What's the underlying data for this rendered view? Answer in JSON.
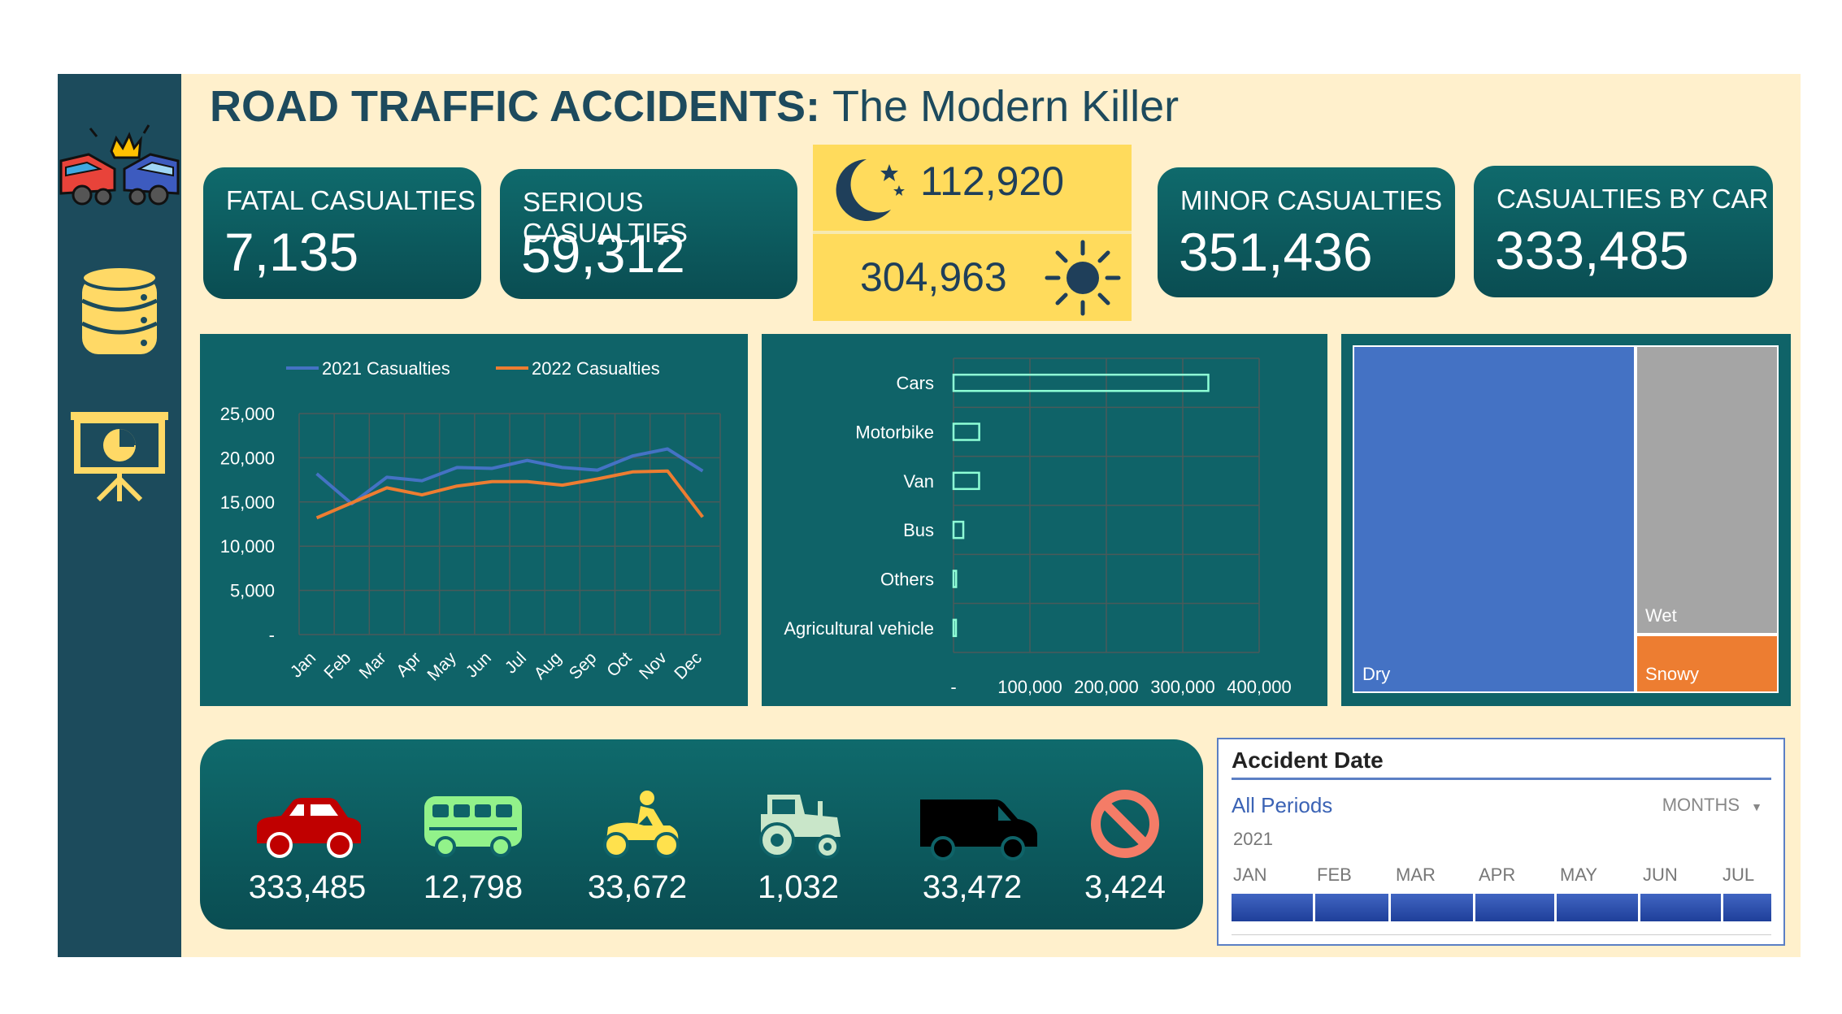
{
  "title": {
    "main": "ROAD TRAFFIC ACCIDENTS:",
    "sub": "The Modern Killer"
  },
  "sidebar": {
    "icons": [
      "car-crash-icon",
      "database-icon",
      "presentation-chart-icon"
    ]
  },
  "kpis": {
    "fatal": {
      "label": "FATAL CASUALTIES",
      "value": "7,135"
    },
    "serious": {
      "label": "SERIOUS CASUALTIES",
      "value": "59,312"
    },
    "minor": {
      "label": "MINOR CASUALTIES",
      "value": "351,436"
    },
    "by_car": {
      "label": "CASUALTIES BY CAR",
      "value": "333,485"
    }
  },
  "day_night": {
    "night_value": "112,920",
    "day_value": "304,963"
  },
  "chart_data": [
    {
      "type": "line",
      "categories": [
        "Jan",
        "Feb",
        "Mar",
        "Apr",
        "May",
        "Jun",
        "Jul",
        "Aug",
        "Sep",
        "Oct",
        "Nov",
        "Dec"
      ],
      "series": [
        {
          "name": "2021 Casualties",
          "color": "#4472c4",
          "values": [
            18200,
            14800,
            17800,
            17400,
            18900,
            18800,
            19700,
            18900,
            18600,
            20200,
            21000,
            18500
          ]
        },
        {
          "name": "2022 Casualties",
          "color": "#ed7d31",
          "values": [
            13200,
            14900,
            16600,
            15800,
            16800,
            17300,
            17300,
            16900,
            17600,
            18400,
            18500,
            13300
          ]
        }
      ],
      "yticks": [
        "-",
        "5,000",
        "10,000",
        "15,000",
        "20,000",
        "25,000"
      ],
      "ylim": [
        0,
        25000
      ],
      "legend": "top"
    },
    {
      "type": "bar",
      "orientation": "horizontal",
      "categories": [
        "Cars",
        "Motorbike",
        "Van",
        "Bus",
        "Others",
        "Agricultural vehicle"
      ],
      "values": [
        333485,
        33672,
        33472,
        12798,
        3424,
        1032
      ],
      "xticks": [
        "-",
        "100,000",
        "200,000",
        "300,000",
        "400,000"
      ],
      "xlim": [
        0,
        400000
      ]
    },
    {
      "type": "treemap",
      "labels": [
        "Dry",
        "Wet",
        "Snowy"
      ],
      "colors": [
        "#4472c4",
        "#a5a5a5",
        "#ed7d31"
      ]
    }
  ],
  "vehicles": [
    {
      "icon": "car-icon",
      "value": "333,485"
    },
    {
      "icon": "bus-icon",
      "value": "12,798"
    },
    {
      "icon": "motorbike-icon",
      "value": "33,672"
    },
    {
      "icon": "tractor-icon",
      "value": "1,032"
    },
    {
      "icon": "van-icon",
      "value": "33,472"
    },
    {
      "icon": "prohibited-icon",
      "value": "3,424"
    }
  ],
  "slicer": {
    "header": "Accident Date",
    "all_periods": "All Periods",
    "level": "MONTHS",
    "year": "2021",
    "months": [
      "JAN",
      "FEB",
      "MAR",
      "APR",
      "MAY",
      "JUN",
      "JUL"
    ]
  }
}
